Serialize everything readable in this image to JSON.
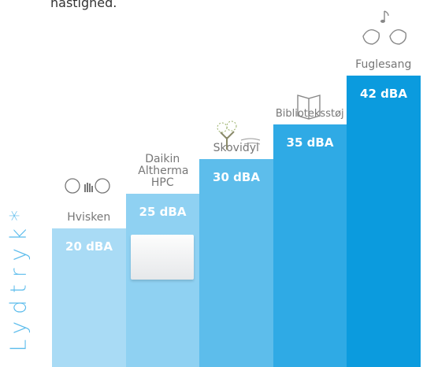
{
  "intro_text": "hastighed.",
  "chart_data": {
    "type": "bar",
    "y_label": "Lydtryk*",
    "categories": [
      "Hvisken",
      "Daikin Altherma HPC",
      "Skovidyl",
      "Biblioteksstøj",
      "Fuglesang"
    ],
    "values": [
      20,
      25,
      30,
      35,
      42
    ],
    "value_labels": [
      "20 dBA",
      "25 dBA",
      "30 dBA",
      "35 dBA",
      "42 dBA"
    ],
    "colors": [
      "#a9dbf5",
      "#8fd1f2",
      "#5dbdeb",
      "#2faae5",
      "#0b9bde"
    ]
  }
}
